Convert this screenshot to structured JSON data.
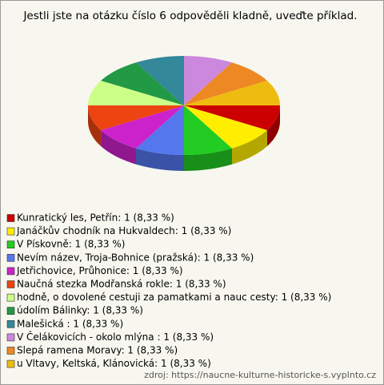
{
  "chart_data": {
    "type": "pie",
    "title": "Jestli jste na otázku číslo 6 odpověděli kladně, uveďte příklad.",
    "categories": [
      "Kunratický les, Petřín: 1 (8,33 %)",
      "Janáčkův chodník na Hukvaldech: 1 (8,33 %)",
      "V Pískovně: 1 (8,33 %)",
      "Nevím název, Troja-Bohnice (pražská): 1 (8,33 %)",
      "Jetřichovice,  Průhonice: 1 (8,33 %)",
      "Naučná stezka Modřanská rokle: 1 (8,33 %)",
      "hodně, o dovolené cestuji za pamatkami a nauc cesty: 1 (8,33 %)",
      "údolím Bálinky: 1 (8,33 %)",
      "Malešická : 1 (8,33 %)",
      "V Čelákovicích - okolo mlýna : 1 (8,33 %)",
      "Slepá ramena Moravy: 1 (8,33 %)",
      "u Vltavy, Keltská, Klánovická: 1 (8,33 %)"
    ],
    "values": [
      1,
      1,
      1,
      1,
      1,
      1,
      1,
      1,
      1,
      1,
      1,
      1
    ],
    "colors": [
      "#cc0000",
      "#ffee00",
      "#22cc22",
      "#5577ee",
      "#cc22cc",
      "#ee4411",
      "#ccff88",
      "#229944",
      "#338899",
      "#cc88dd",
      "#ee8822",
      "#eebb11"
    ],
    "source": "zdroj: https://naucne-kulturne-historicke-s.vyplnto.cz"
  }
}
